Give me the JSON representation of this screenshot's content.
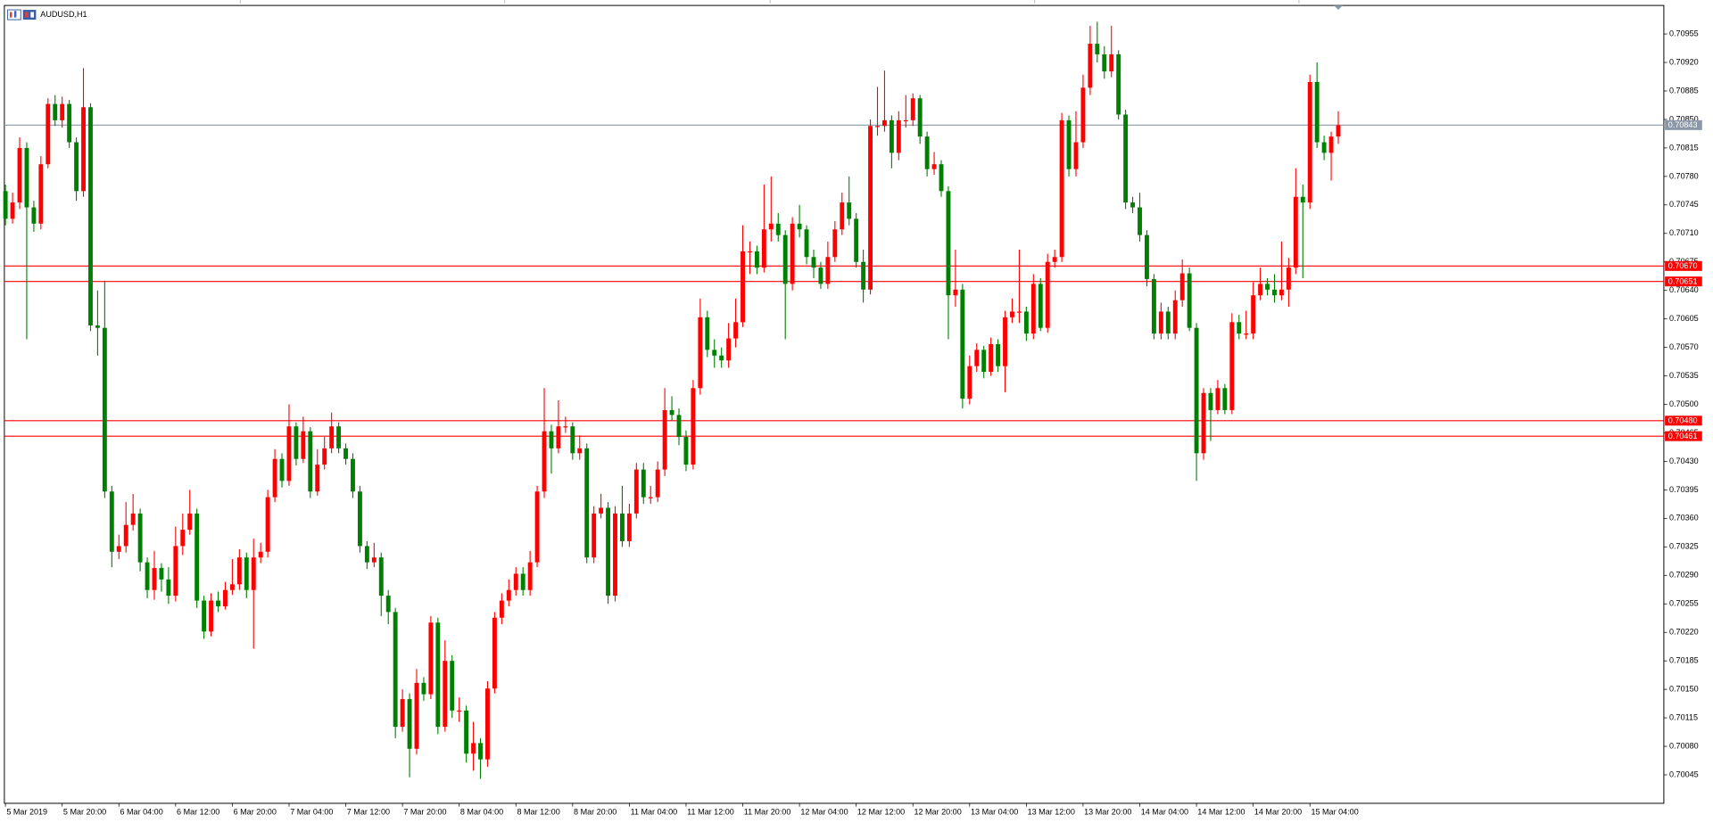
{
  "chart_data": {
    "type": "candlestick",
    "title": "AUDUSD,H1",
    "up_color": "#ff0000",
    "down_color": "#008000",
    "ylim": [
      0.7001,
      0.7099
    ],
    "yticks": [
      0.70955,
      {
        "value": 0.7092,
        "label": "0.70920"
      },
      0.70885,
      {
        "value": 0.7085,
        "label": "0.70850"
      },
      0.70815,
      {
        "value": 0.7078,
        "label": "0.70780"
      },
      0.70745,
      {
        "value": 0.7071,
        "label": "0.70710"
      },
      0.70675,
      {
        "value": 0.7064,
        "label": "0.70640"
      },
      0.70605,
      {
        "value": 0.7057,
        "label": "0.70570"
      },
      0.70535,
      {
        "value": 0.705,
        "label": "0.70500"
      },
      0.70465,
      {
        "value": 0.7043,
        "label": "0.70430"
      },
      0.70395,
      {
        "value": 0.7036,
        "label": "0.70360"
      },
      0.70325,
      {
        "value": 0.7029,
        "label": "0.70290"
      },
      0.70255,
      {
        "value": 0.7022,
        "label": "0.70220"
      },
      0.70185,
      {
        "value": 0.7015,
        "label": "0.70150"
      },
      0.70115,
      {
        "value": 0.7008,
        "label": "0.70080"
      },
      0.70045
    ],
    "levels": [
      {
        "value": 0.70843,
        "color": "#8a97a6"
      },
      {
        "value": 0.7067,
        "label": "0.70670",
        "color": "#ff0000"
      },
      {
        "value": 0.70651,
        "color": "#ff0000"
      },
      {
        "value": 0.7048,
        "label": "0.70480",
        "color": "#ff0000"
      },
      {
        "value": 0.70461,
        "color": "#ff0000"
      }
    ],
    "x": [
      "5 Mar 2019",
      null,
      null,
      null,
      null,
      null,
      null,
      null,
      "5 Mar 20:00",
      null,
      null,
      null,
      null,
      null,
      null,
      null,
      "6 Mar 04:00",
      null,
      null,
      null,
      null,
      null,
      null,
      null,
      "6 Mar 12:00",
      null,
      null,
      null,
      null,
      null,
      null,
      null,
      "6 Mar 20:00",
      null,
      null,
      null,
      null,
      null,
      null,
      null,
      "7 Mar 04:00",
      null,
      null,
      null,
      null,
      null,
      null,
      null,
      "7 Mar 12:00",
      null,
      null,
      null,
      null,
      null,
      null,
      null,
      "7 Mar 20:00",
      null,
      null,
      null,
      null,
      null,
      null,
      null,
      "8 Mar 04:00",
      null,
      null,
      null,
      null,
      null,
      null,
      null,
      "8 Mar 12:00",
      null,
      null,
      null,
      null,
      null,
      null,
      null,
      "8 Mar 20:00",
      null,
      null,
      null,
      null,
      null,
      null,
      null,
      "11 Mar 04:00",
      null,
      null,
      null,
      null,
      null,
      null,
      null,
      "11 Mar 12:00",
      null,
      null,
      null,
      null,
      null,
      null,
      null,
      "11 Mar 20:00",
      null,
      null,
      null,
      null,
      null,
      null,
      null,
      "12 Mar 04:00",
      null,
      null,
      null,
      null,
      null,
      null,
      null,
      "12 Mar 12:00",
      null,
      null,
      null,
      null,
      null,
      null,
      null,
      "12 Mar 20:00",
      null,
      null,
      null,
      null,
      null,
      null,
      null,
      "13 Mar 04:00",
      null,
      null,
      null,
      null,
      null,
      null,
      null,
      "13 Mar 12:00",
      null,
      null,
      null,
      null,
      null,
      null,
      null,
      "13 Mar 20:00",
      null,
      null,
      null,
      null,
      null,
      null,
      null,
      "14 Mar 04:00",
      null,
      null,
      null,
      null,
      null,
      null,
      null,
      "14 Mar 12:00",
      null,
      null,
      null,
      null,
      null,
      null,
      null,
      "14 Mar 20:00",
      null,
      null,
      null,
      null,
      null,
      null,
      null,
      "15 Mar 04:00",
      null,
      null,
      null,
      null
    ],
    "open": [
      0.70762,
      0.70728,
      0.70748,
      0.70815,
      0.70742,
      0.70722,
      0.70795,
      0.70869,
      0.70849,
      0.70869,
      0.70822,
      0.70762,
      0.70865,
      0.70597,
      0.70594,
      0.70393,
      0.70319,
      0.70326,
      0.70352,
      0.70366,
      0.70306,
      0.70272,
      0.70299,
      0.70285,
      0.70265,
      0.70326,
      0.70346,
      0.70366,
      0.70259,
      0.70221,
      0.70259,
      0.70252,
      0.70272,
      0.70279,
      0.70312,
      0.70272,
      0.70312,
      0.70319,
      0.70386,
      0.70433,
      0.70406,
      0.70473,
      0.70433,
      0.70467,
      0.70393,
      0.70426,
      0.70446,
      0.70473,
      0.70446,
      0.70433,
      0.70393,
      0.70326,
      0.70306,
      0.70312,
      0.70265,
      0.70245,
      0.70104,
      0.70138,
      0.70077,
      0.70158,
      0.70144,
      0.70232,
      0.70104,
      0.70185,
      0.70124,
      0.70124,
      0.70071,
      0.70084,
      0.70064,
      0.70151,
      0.70238,
      0.70259,
      0.70272,
      0.70292,
      0.70272,
      0.70306,
      0.70393,
      0.70467,
      0.70446,
      0.70473,
      0.70473,
      0.7044,
      0.70446,
      0.70312,
      0.70366,
      0.70373,
      0.70265,
      0.70366,
      0.70332,
      0.70366,
      0.7042,
      0.70386,
      0.70386,
      0.7042,
      0.70493,
      0.70487,
      0.7046,
      0.70426,
      0.7052,
      0.70607,
      0.70567,
      0.7056,
      0.70554,
      0.70581,
      0.70601,
      0.70688,
      0.70688,
      0.70668,
      0.70715,
      0.70722,
      0.70708,
      0.70648,
      0.70722,
      0.70715,
      0.70681,
      0.70668,
      0.70648,
      0.70681,
      0.70715,
      0.70748,
      0.70728,
      0.70675,
      0.70641,
      0.70842,
      0.70842,
      0.70849,
      0.70809,
      0.70849,
      0.70849,
      0.70876,
      0.70829,
      0.70789,
      0.70795,
      0.70762,
      0.70634,
      0.70641,
      0.70507,
      0.70547,
      0.70567,
      0.7054,
      0.70574,
      0.70547,
      0.70607,
      0.70614,
      0.70614,
      0.70587,
      0.70648,
      0.70594,
      0.70675,
      0.70681,
      0.70849,
      0.70789,
      0.70822,
      0.70889,
      0.70943,
      0.7093,
      0.70909,
      0.7093,
      0.70856,
      0.70748,
      0.70742,
      0.70708,
      0.70654,
      0.70587,
      0.70614,
      0.70587,
      0.70628,
      0.70661,
      0.70594,
      0.7044,
      0.70514,
      0.70493,
      0.7052,
      0.70493,
      0.70601,
      0.70587,
      0.70587,
      0.70634,
      0.70648,
      0.70641,
      0.70634,
      0.70641,
      0.70668,
      0.70755,
      0.70748,
      0.70896,
      0.70822,
      0.70809,
      0.70829
    ],
    "high": [
      0.7077,
      0.7076,
      0.70828,
      0.70822,
      0.7075,
      0.70805,
      0.70876,
      0.7088,
      0.70878,
      0.70874,
      0.70828,
      0.70913,
      0.7087,
      0.7064,
      0.70652,
      0.704,
      0.7034,
      0.7038,
      0.7039,
      0.70372,
      0.70312,
      0.7032,
      0.70305,
      0.703,
      0.7035,
      0.70366,
      0.70395,
      0.70372,
      0.70265,
      0.70268,
      0.7027,
      0.70282,
      0.7031,
      0.70322,
      0.70318,
      0.70335,
      0.7033,
      0.70395,
      0.70445,
      0.7044,
      0.705,
      0.70478,
      0.70485,
      0.70472,
      0.70445,
      0.7046,
      0.7049,
      0.70478,
      0.70452,
      0.7044,
      0.704,
      0.70332,
      0.7033,
      0.70318,
      0.70272,
      0.7025,
      0.7015,
      0.70145,
      0.70175,
      0.70165,
      0.7024,
      0.70238,
      0.7021,
      0.70192,
      0.7014,
      0.7013,
      0.7011,
      0.7009,
      0.7016,
      0.70245,
      0.70268,
      0.70285,
      0.703,
      0.703,
      0.7032,
      0.704,
      0.7052,
      0.70475,
      0.70505,
      0.70485,
      0.70478,
      0.70462,
      0.70452,
      0.70375,
      0.7039,
      0.7038,
      0.70375,
      0.704,
      0.70378,
      0.70428,
      0.70428,
      0.704,
      0.7043,
      0.7052,
      0.7051,
      0.70495,
      0.70468,
      0.7053,
      0.7063,
      0.70615,
      0.7058,
      0.7057,
      0.706,
      0.7063,
      0.7072,
      0.707,
      0.70695,
      0.7077,
      0.7078,
      0.70735,
      0.70714,
      0.7073,
      0.70745,
      0.7072,
      0.7069,
      0.70675,
      0.707,
      0.70725,
      0.7076,
      0.7078,
      0.70735,
      0.7069,
      0.7085,
      0.7089,
      0.7091,
      0.70855,
      0.7086,
      0.7088,
      0.70882,
      0.7088,
      0.70835,
      0.7081,
      0.708,
      0.70768,
      0.7069,
      0.70648,
      0.7056,
      0.70575,
      0.70572,
      0.70582,
      0.7058,
      0.70615,
      0.7063,
      0.7069,
      0.7062,
      0.7066,
      0.70655,
      0.70685,
      0.7069,
      0.70858,
      0.70855,
      0.7086,
      0.70905,
      0.70965,
      0.7097,
      0.7094,
      0.70965,
      0.70935,
      0.70862,
      0.70755,
      0.7076,
      0.70714,
      0.7066,
      0.70625,
      0.7062,
      0.7064,
      0.70678,
      0.70668,
      0.706,
      0.7052,
      0.7052,
      0.7053,
      0.70525,
      0.70612,
      0.7061,
      0.70615,
      0.7065,
      0.70668,
      0.70655,
      0.7066,
      0.707,
      0.7068,
      0.7079,
      0.7077,
      0.70905,
      0.7092,
      0.7083,
      0.70835,
      0.7086
    ],
    "low": [
      0.7072,
      0.70722,
      0.7074,
      0.7058,
      0.70712,
      0.70715,
      0.7079,
      0.70842,
      0.7084,
      0.70815,
      0.7075,
      0.70755,
      0.7059,
      0.7056,
      0.70385,
      0.703,
      0.7031,
      0.70318,
      0.70345,
      0.70295,
      0.70262,
      0.7026,
      0.7027,
      0.70255,
      0.70258,
      0.70315,
      0.7034,
      0.7025,
      0.70212,
      0.70215,
      0.70245,
      0.70248,
      0.70266,
      0.70272,
      0.70262,
      0.702,
      0.70305,
      0.70312,
      0.7038,
      0.70398,
      0.704,
      0.70425,
      0.70428,
      0.70385,
      0.70388,
      0.7042,
      0.7044,
      0.7044,
      0.70426,
      0.70385,
      0.70318,
      0.70298,
      0.703,
      0.7024,
      0.7023,
      0.7009,
      0.70098,
      0.70042,
      0.7007,
      0.70136,
      0.70138,
      0.70095,
      0.70098,
      0.70115,
      0.7011,
      0.7006,
      0.7005,
      0.7004,
      0.70055,
      0.70145,
      0.7023,
      0.70252,
      0.70265,
      0.70265,
      0.70265,
      0.703,
      0.70385,
      0.70415,
      0.7044,
      0.70465,
      0.70432,
      0.70432,
      0.70305,
      0.70305,
      0.7036,
      0.70255,
      0.70258,
      0.70325,
      0.70325,
      0.7036,
      0.70378,
      0.70378,
      0.7038,
      0.70412,
      0.7048,
      0.7045,
      0.70418,
      0.7042,
      0.70512,
      0.70558,
      0.70545,
      0.70545,
      0.70545,
      0.7057,
      0.70595,
      0.7066,
      0.7066,
      0.70662,
      0.707,
      0.707,
      0.7058,
      0.7064,
      0.70705,
      0.70672,
      0.70655,
      0.70642,
      0.70642,
      0.70675,
      0.70708,
      0.7072,
      0.70668,
      0.70625,
      0.70635,
      0.7083,
      0.70835,
      0.7079,
      0.708,
      0.7084,
      0.70842,
      0.7082,
      0.7078,
      0.70782,
      0.70755,
      0.7058,
      0.7062,
      0.70495,
      0.705,
      0.7054,
      0.70532,
      0.70535,
      0.7054,
      0.70515,
      0.706,
      0.706,
      0.70578,
      0.7058,
      0.7059,
      0.70588,
      0.70668,
      0.70675,
      0.7078,
      0.7078,
      0.70815,
      0.7088,
      0.7092,
      0.709,
      0.70902,
      0.7085,
      0.7074,
      0.70735,
      0.707,
      0.70645,
      0.7058,
      0.7058,
      0.7058,
      0.7058,
      0.7062,
      0.7059,
      0.70406,
      0.70432,
      0.70455,
      0.70488,
      0.70488,
      0.70488,
      0.7058,
      0.7058,
      0.7058,
      0.70628,
      0.70634,
      0.70625,
      0.70628,
      0.7062,
      0.7066,
      0.70655,
      0.7074,
      0.70815,
      0.708,
      0.70775,
      0.7082
    ],
    "close": [
      0.70728,
      0.70748,
      0.70815,
      0.70742,
      0.70722,
      0.70795,
      0.70869,
      0.70849,
      0.70869,
      0.70822,
      0.70762,
      0.70865,
      0.70597,
      0.70594,
      0.70393,
      0.70319,
      0.70326,
      0.70352,
      0.70366,
      0.70306,
      0.70272,
      0.70299,
      0.70285,
      0.70265,
      0.70326,
      0.70346,
      0.70366,
      0.70259,
      0.70221,
      0.70259,
      0.70252,
      0.70272,
      0.70279,
      0.70312,
      0.70272,
      0.70312,
      0.70319,
      0.70386,
      0.70433,
      0.70406,
      0.70473,
      0.70433,
      0.70467,
      0.70393,
      0.70426,
      0.70446,
      0.70473,
      0.70446,
      0.70433,
      0.70393,
      0.70326,
      0.70306,
      0.70312,
      0.70265,
      0.70245,
      0.70104,
      0.70138,
      0.70077,
      0.70158,
      0.70144,
      0.70232,
      0.70104,
      0.70185,
      0.70124,
      0.70124,
      0.70071,
      0.70084,
      0.70064,
      0.70151,
      0.70238,
      0.70259,
      0.70272,
      0.70292,
      0.70272,
      0.70306,
      0.70393,
      0.70467,
      0.70446,
      0.70473,
      0.70473,
      0.7044,
      0.70446,
      0.70312,
      0.70366,
      0.70373,
      0.70265,
      0.70366,
      0.70332,
      0.70366,
      0.7042,
      0.70386,
      0.70386,
      0.7042,
      0.70493,
      0.70487,
      0.7046,
      0.70426,
      0.7052,
      0.70607,
      0.70567,
      0.7056,
      0.70554,
      0.70581,
      0.70601,
      0.70688,
      0.70688,
      0.70668,
      0.70715,
      0.70722,
      0.70708,
      0.70648,
      0.70722,
      0.70715,
      0.70681,
      0.70668,
      0.70648,
      0.70681,
      0.70715,
      0.70748,
      0.70728,
      0.70675,
      0.70641,
      0.70842,
      0.70842,
      0.70849,
      0.70809,
      0.70849,
      0.70849,
      0.70876,
      0.70829,
      0.70789,
      0.70795,
      0.70762,
      0.70634,
      0.70641,
      0.70507,
      0.70547,
      0.70567,
      0.7054,
      0.70574,
      0.70547,
      0.70607,
      0.70614,
      0.70614,
      0.70587,
      0.70648,
      0.70594,
      0.70675,
      0.70681,
      0.70849,
      0.70789,
      0.70822,
      0.70889,
      0.70943,
      0.7093,
      0.70909,
      0.7093,
      0.70856,
      0.70748,
      0.70742,
      0.70708,
      0.70654,
      0.70587,
      0.70614,
      0.70587,
      0.70628,
      0.70661,
      0.70594,
      0.7044,
      0.70514,
      0.70493,
      0.7052,
      0.70493,
      0.70601,
      0.70587,
      0.70587,
      0.70634,
      0.70648,
      0.70641,
      0.70634,
      0.70641,
      0.70668,
      0.70755,
      0.70748,
      0.70896,
      0.70822,
      0.70809,
      0.70829,
      0.70843
    ]
  }
}
